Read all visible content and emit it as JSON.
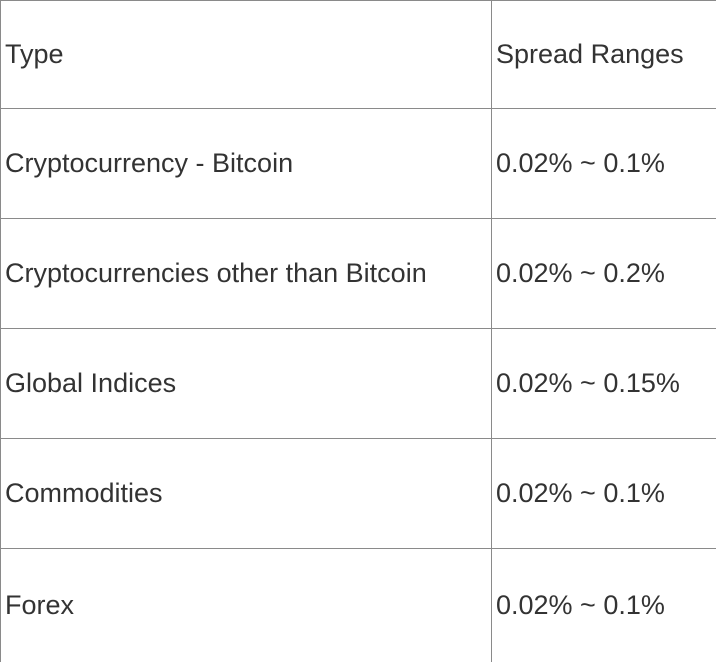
{
  "table": {
    "columns": [
      {
        "label": "Type"
      },
      {
        "label": "Spread Ranges"
      }
    ],
    "rows": [
      {
        "type": "Cryptocurrency - Bitcoin",
        "spread": "0.02% ~ 0.1%"
      },
      {
        "type": "Cryptocurrencies other than Bitcoin",
        "spread": "0.02% ~ 0.2%"
      },
      {
        "type": "Global Indices",
        "spread": "0.02% ~ 0.15%"
      },
      {
        "type": "Commodities",
        "spread": "0.02% ~ 0.1%"
      },
      {
        "type": "Forex",
        "spread": "0.02% ~ 0.1%"
      }
    ],
    "colors": {
      "border": "#8a8a8a",
      "text": "#333333"
    }
  }
}
